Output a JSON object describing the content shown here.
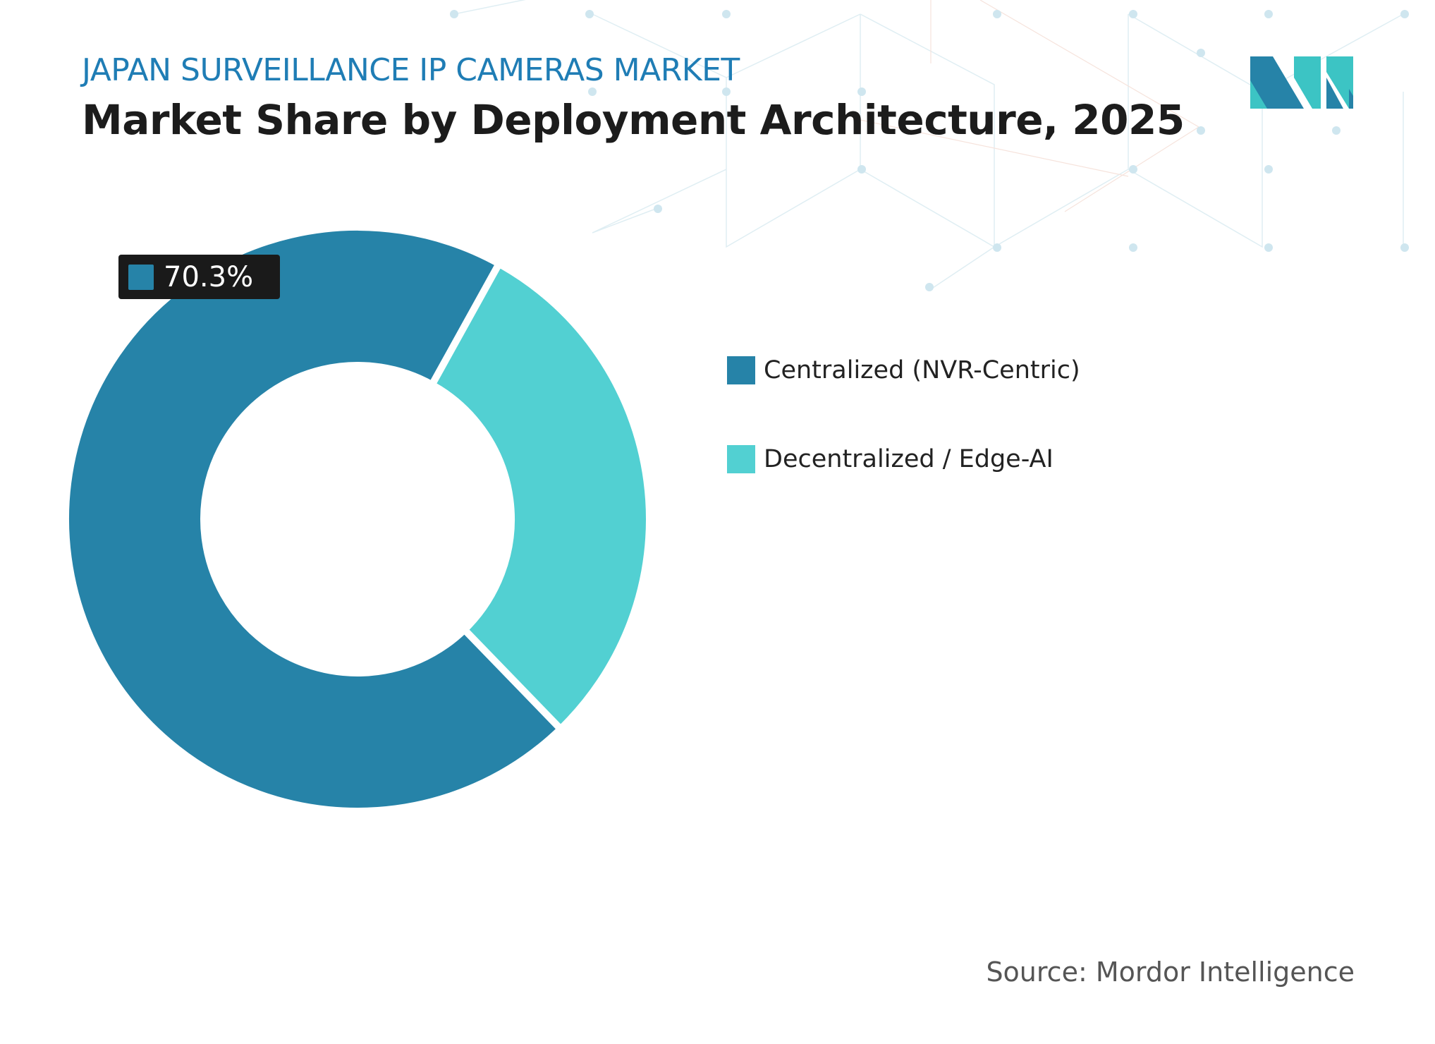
{
  "header": {
    "subtitle": "JAPAN SURVEILLANCE IP CAMERAS MARKET",
    "title": "Market Share by Deployment Architecture, 2025"
  },
  "chart_data": {
    "type": "donut",
    "series": [
      {
        "name": "Centralized (NVR-Centric)",
        "value": 70.3,
        "color": "#2683a8"
      },
      {
        "name": "Decentralized / Edge-AI",
        "value": 29.7,
        "color": "#52d0d2"
      }
    ],
    "data_labels": [
      {
        "series": "Centralized (NVR-Centric)",
        "text": "70.3%"
      }
    ],
    "legend_position": "right"
  },
  "source": "Source: Mordor Intelligence",
  "colors": {
    "subtitle": "#1f7db5",
    "label_bg": "#1a1a1a",
    "logo_dark": "#2683a8",
    "logo_light": "#3cc4c4"
  }
}
